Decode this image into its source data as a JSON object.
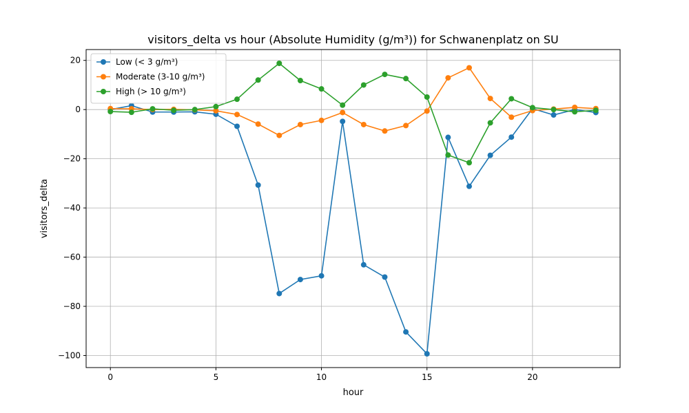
{
  "chart_data": {
    "type": "line",
    "title": "visitors_delta vs hour (Absolute Humidity (g/m³)) for Schwanenplatz on SU",
    "xlabel": "hour",
    "ylabel": "visitors_delta",
    "xlim": [
      -1.15,
      24.15
    ],
    "ylim": [
      -104.9,
      24.4
    ],
    "xticks": [
      0,
      5,
      10,
      15,
      20
    ],
    "yticks": [
      20,
      0,
      -20,
      -40,
      -60,
      -80,
      -100
    ],
    "xtick_labels": [
      "0",
      "5",
      "10",
      "15",
      "20"
    ],
    "ytick_labels": [
      "20",
      "0",
      "−20",
      "−40",
      "−60",
      "−80",
      "−100"
    ],
    "grid": true,
    "legend_position": "upper-left",
    "x": [
      0,
      1,
      2,
      3,
      4,
      5,
      6,
      7,
      8,
      9,
      10,
      11,
      12,
      13,
      14,
      15,
      16,
      17,
      18,
      19,
      20,
      21,
      22,
      23
    ],
    "series": [
      {
        "name": "Low (< 3 g/m³)",
        "color": "#1f77b4",
        "values": [
          0.0,
          1.6,
          -1.0,
          -1.0,
          -0.9,
          -1.9,
          -6.8,
          -30.7,
          -74.8,
          -69.1,
          -67.6,
          -4.8,
          -63.1,
          -68.1,
          -90.4,
          -99.3,
          -11.3,
          -31.2,
          -18.6,
          -11.2,
          0.4,
          -2.2,
          0.0,
          -1.2
        ]
      },
      {
        "name": "Moderate (3-10 g/m³)",
        "color": "#ff7f0e",
        "values": [
          0.4,
          0.3,
          0.0,
          0.1,
          -0.1,
          -0.5,
          -2.0,
          -5.9,
          -10.5,
          -6.1,
          -4.4,
          -1.2,
          -6.1,
          -8.7,
          -6.5,
          -0.6,
          12.9,
          17.0,
          4.5,
          -3.1,
          -0.4,
          0.2,
          0.9,
          0.4
        ]
      },
      {
        "name": "High (> 10 g/m³)",
        "color": "#2ca02c",
        "values": [
          -0.8,
          -1.1,
          0.3,
          -0.3,
          0.0,
          1.2,
          4.2,
          12.0,
          18.8,
          11.8,
          8.4,
          1.8,
          10.0,
          14.3,
          12.6,
          5.1,
          -18.5,
          -21.6,
          -5.4,
          4.4,
          0.8,
          0.0,
          -0.9,
          -0.3
        ]
      }
    ]
  }
}
